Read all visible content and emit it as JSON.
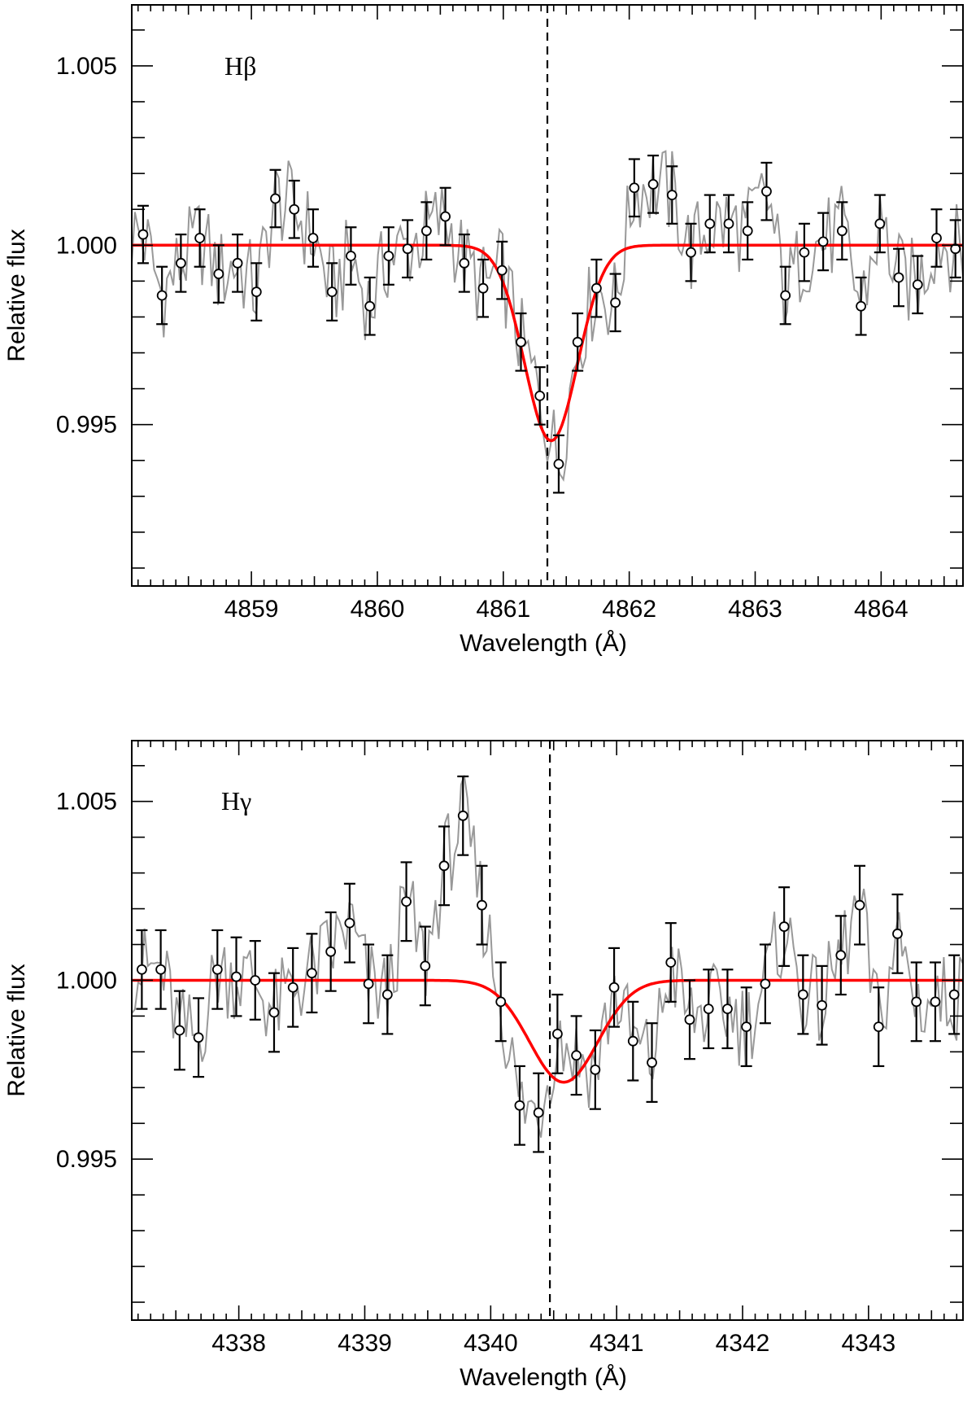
{
  "chart_data": [
    {
      "type": "line",
      "panel": "top",
      "label": "Hβ",
      "xlabel": "Wavelength (Å)",
      "ylabel": "Relative flux",
      "xlim": [
        4858.05,
        4864.65
      ],
      "ylim": [
        0.9905,
        1.0067
      ],
      "x_ticks": [
        4859,
        4860,
        4861,
        4862,
        4863,
        4864
      ],
      "x_tick_labels": [
        "4859",
        "4860",
        "4861",
        "4862",
        "4863",
        "4864"
      ],
      "y_ticks": [
        0.995,
        1.0,
        1.005
      ],
      "y_tick_labels": [
        "0.995",
        "1.000",
        "1.005"
      ],
      "line_center": 4861.35,
      "fit": {
        "name": "Gaussian fit",
        "color": "#ff0000",
        "center": 4861.38,
        "depth": 0.00545,
        "sigma": 0.21
      },
      "spectrum_color": "#999999",
      "points": {
        "x": [
          4858.14,
          4858.29,
          4858.44,
          4858.59,
          4858.74,
          4858.89,
          4859.04,
          4859.19,
          4859.34,
          4859.49,
          4859.64,
          4859.79,
          4859.94,
          4860.09,
          4860.24,
          4860.39,
          4860.54,
          4860.69,
          4860.84,
          4860.99,
          4861.14,
          4861.29,
          4861.44,
          4861.59,
          4861.74,
          4861.89,
          4862.04,
          4862.19,
          4862.34,
          4862.49,
          4862.64,
          4862.79,
          4862.94,
          4863.09,
          4863.24,
          4863.39,
          4863.54,
          4863.69,
          4863.84,
          4863.99,
          4864.14,
          4864.29,
          4864.44,
          4864.59
        ],
        "y": [
          1.0003,
          0.9986,
          0.9995,
          1.0002,
          0.9992,
          0.9995,
          0.9987,
          1.0013,
          1.001,
          1.0002,
          0.9987,
          0.9997,
          0.9983,
          0.9997,
          0.9999,
          1.0004,
          1.0008,
          0.9995,
          0.9988,
          0.9993,
          0.9973,
          0.9958,
          0.9939,
          0.9973,
          0.9988,
          0.9984,
          1.0016,
          1.0017,
          1.0014,
          0.9998,
          1.0006,
          1.0006,
          1.0004,
          1.0015,
          0.9986,
          0.9998,
          1.0001,
          1.0004,
          0.9983,
          1.0006,
          0.9991,
          0.9989,
          1.0002,
          0.9999
        ],
        "err": 0.0008
      }
    },
    {
      "type": "line",
      "panel": "bottom",
      "label": "Hγ",
      "xlabel": "Wavelength (Å)",
      "ylabel": "Relative flux",
      "xlim": [
        4337.15,
        4343.75
      ],
      "ylim": [
        0.9905,
        1.0067
      ],
      "x_ticks": [
        4338,
        4339,
        4340,
        4341,
        4342,
        4343
      ],
      "x_tick_labels": [
        "4338",
        "4339",
        "4340",
        "4341",
        "4342",
        "4343"
      ],
      "y_ticks": [
        0.995,
        1.0,
        1.005
      ],
      "y_tick_labels": [
        "0.995",
        "1.000",
        "1.005"
      ],
      "line_center": 4340.47,
      "fit": {
        "name": "Gaussian fit",
        "color": "#ff0000",
        "center": 4340.58,
        "depth": 0.00285,
        "sigma": 0.27
      },
      "spectrum_color": "#999999",
      "points": {
        "x": [
          4337.23,
          4337.38,
          4337.53,
          4337.68,
          4337.83,
          4337.98,
          4338.13,
          4338.28,
          4338.43,
          4338.58,
          4338.73,
          4338.88,
          4339.03,
          4339.18,
          4339.33,
          4339.48,
          4339.63,
          4339.78,
          4339.93,
          4340.08,
          4340.23,
          4340.38,
          4340.53,
          4340.68,
          4340.83,
          4340.98,
          4341.13,
          4341.28,
          4341.43,
          4341.58,
          4341.73,
          4341.88,
          4342.03,
          4342.18,
          4342.33,
          4342.48,
          4342.63,
          4342.78,
          4342.93,
          4343.08,
          4343.23,
          4343.38,
          4343.53,
          4343.68
        ],
        "y": [
          1.0003,
          1.0003,
          0.9986,
          0.9984,
          1.0003,
          1.0001,
          1.0,
          0.9991,
          0.9998,
          1.0002,
          1.0008,
          1.0016,
          0.9999,
          0.9996,
          1.0022,
          1.0004,
          1.0032,
          1.0046,
          1.0021,
          0.9994,
          0.9965,
          0.9963,
          0.9985,
          0.9979,
          0.9975,
          0.9998,
          0.9983,
          0.9977,
          1.0005,
          0.9989,
          0.9992,
          0.9992,
          0.9987,
          0.9999,
          1.0015,
          0.9996,
          0.9993,
          1.0007,
          1.0021,
          0.9987,
          1.0013,
          0.9994,
          0.9994,
          0.9996
        ],
        "err": 0.0011
      }
    }
  ]
}
